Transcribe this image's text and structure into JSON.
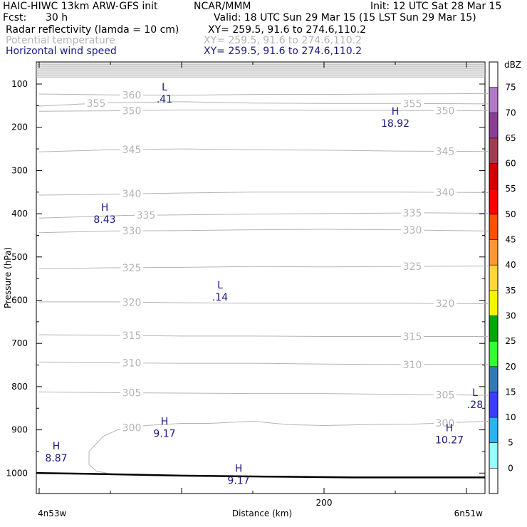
{
  "header": {
    "model": "HAIC-HIWC 13km ARW-GFS init",
    "org": "NCAR/MMM",
    "init": "Init: 12 UTC Sat 28 Mar 15",
    "fcst_label": "Fcst:",
    "fcst_value": "30 h",
    "valid": "Valid: 18 UTC Sun 29 Mar 15 (15 LST Sun 29 Mar 15)",
    "fields": [
      {
        "name": "Radar reflectivity (lamda = 10 cm)",
        "xy": "XY= 259.5, 91.6 to 274.6,110.2",
        "color": "#000000"
      },
      {
        "name": "Potential temperature",
        "xy": "XY= 259.5, 91.6 to 274.6,110.2",
        "color": "#b4b4b4"
      },
      {
        "name": "Horizontal wind speed",
        "xy": "XY= 259.5, 91.6 to 274.6,110.2",
        "color": "#1a1a80"
      }
    ]
  },
  "chart_data": {
    "type": "contour",
    "ylabel": "Pressure (hPa)",
    "xlabel": "Distance (km)",
    "y_ticks": [
      100,
      200,
      300,
      400,
      500,
      600,
      700,
      800,
      900,
      1000
    ],
    "ylim": [
      1050,
      50
    ],
    "x_ticks": [
      200
    ],
    "xlim": [
      0,
      315
    ],
    "x_endpoints": {
      "left": "4n53w",
      "right": "6n51w"
    },
    "theta_contours": [
      {
        "value": 360,
        "pts": [
          [
            0,
            123
          ],
          [
            50,
            125
          ],
          [
            100,
            126
          ],
          [
            150,
            124
          ],
          [
            200,
            124
          ],
          [
            250,
            123
          ],
          [
            315,
            122
          ]
        ],
        "labels": [
          [
            65,
            "360"
          ]
        ]
      },
      {
        "value": 355,
        "pts": [
          [
            0,
            151
          ],
          [
            50,
            143
          ],
          [
            100,
            141
          ],
          [
            150,
            144
          ],
          [
            200,
            145
          ],
          [
            250,
            145
          ],
          [
            315,
            146
          ]
        ],
        "labels": [
          [
            40,
            "355"
          ],
          [
            262,
            "355"
          ]
        ]
      },
      {
        "value": 350,
        "pts": [
          [
            0,
            163
          ],
          [
            50,
            162
          ],
          [
            100,
            160
          ],
          [
            150,
            160
          ],
          [
            200,
            161
          ],
          [
            250,
            161
          ],
          [
            315,
            162
          ]
        ],
        "labels": [
          [
            65,
            "350"
          ],
          [
            285,
            "350"
          ]
        ]
      },
      {
        "value": 345,
        "pts": [
          [
            0,
            257
          ],
          [
            50,
            252
          ],
          [
            100,
            250
          ],
          [
            150,
            252
          ],
          [
            200,
            253
          ],
          [
            250,
            255
          ],
          [
            315,
            256
          ]
        ],
        "labels": [
          [
            65,
            "345"
          ],
          [
            285,
            "345"
          ]
        ]
      },
      {
        "value": 340,
        "pts": [
          [
            0,
            357
          ],
          [
            50,
            355
          ],
          [
            100,
            352
          ],
          [
            150,
            350
          ],
          [
            200,
            350
          ],
          [
            250,
            350
          ],
          [
            315,
            351
          ]
        ],
        "labels": [
          [
            65,
            "340"
          ],
          [
            285,
            "340"
          ]
        ]
      },
      {
        "value": 335,
        "pts": [
          [
            0,
            410
          ],
          [
            60,
            404
          ],
          [
            120,
            402
          ],
          [
            180,
            400
          ],
          [
            230,
            399
          ],
          [
            270,
            398
          ],
          [
            315,
            399
          ]
        ],
        "labels": [
          [
            75,
            "335"
          ],
          [
            262,
            "335"
          ]
        ]
      },
      {
        "value": 330,
        "pts": [
          [
            0,
            444
          ],
          [
            50,
            440
          ],
          [
            100,
            439
          ],
          [
            150,
            437
          ],
          [
            200,
            436
          ],
          [
            250,
            437
          ],
          [
            315,
            440
          ]
        ],
        "labels": [
          [
            65,
            "330"
          ],
          [
            262,
            "330"
          ]
        ]
      },
      {
        "value": 325,
        "pts": [
          [
            0,
            527
          ],
          [
            50,
            525
          ],
          [
            100,
            524
          ],
          [
            150,
            522
          ],
          [
            200,
            523
          ],
          [
            250,
            522
          ],
          [
            315,
            521
          ]
        ],
        "labels": [
          [
            65,
            "325"
          ],
          [
            262,
            "325"
          ]
        ]
      },
      {
        "value": 320,
        "pts": [
          [
            0,
            604
          ],
          [
            50,
            604
          ],
          [
            100,
            606
          ],
          [
            150,
            607
          ],
          [
            200,
            607
          ],
          [
            250,
            607
          ],
          [
            315,
            608
          ]
        ],
        "labels": [
          [
            65,
            "320"
          ],
          [
            285,
            "320"
          ]
        ]
      },
      {
        "value": 315,
        "pts": [
          [
            0,
            680
          ],
          [
            50,
            681
          ],
          [
            100,
            683
          ],
          [
            150,
            683
          ],
          [
            200,
            684
          ],
          [
            250,
            684
          ],
          [
            315,
            684
          ]
        ],
        "labels": [
          [
            65,
            "315"
          ],
          [
            262,
            "315"
          ]
        ]
      },
      {
        "value": 310,
        "pts": [
          [
            0,
            743
          ],
          [
            50,
            745
          ],
          [
            100,
            746
          ],
          [
            150,
            746
          ],
          [
            200,
            748
          ],
          [
            250,
            749
          ],
          [
            315,
            749
          ]
        ],
        "labels": [
          [
            65,
            "310"
          ],
          [
            262,
            "310"
          ]
        ]
      },
      {
        "value": 305,
        "pts": [
          [
            0,
            812
          ],
          [
            50,
            814
          ],
          [
            100,
            815
          ],
          [
            150,
            816
          ],
          [
            200,
            816
          ],
          [
            250,
            818
          ],
          [
            315,
            820
          ]
        ],
        "labels": [
          [
            65,
            "305"
          ],
          [
            285,
            "305"
          ]
        ]
      },
      {
        "value": 300,
        "pts": [
          [
            50,
            1002
          ],
          [
            40,
            995
          ],
          [
            35,
            980
          ],
          [
            35,
            950
          ],
          [
            45,
            915
          ],
          [
            55,
            900
          ],
          [
            75,
            890
          ],
          [
            100,
            885
          ],
          [
            120,
            885
          ],
          [
            150,
            880
          ],
          [
            175,
            888
          ],
          [
            200,
            890
          ],
          [
            230,
            888
          ],
          [
            260,
            887
          ],
          [
            315,
            880
          ]
        ],
        "labels": [
          [
            65,
            "300"
          ],
          [
            285,
            "300"
          ]
        ]
      }
    ],
    "terrain": [
      [
        0,
        1000
      ],
      [
        40,
        1002
      ],
      [
        100,
        1006
      ],
      [
        160,
        1008
      ],
      [
        220,
        1010
      ],
      [
        315,
        1010
      ]
    ],
    "wind_extrema": [
      {
        "kind": "L",
        "value": ".41",
        "x": 88,
        "p": 130
      },
      {
        "kind": "H",
        "value": "18.92",
        "x": 250,
        "p": 186
      },
      {
        "kind": "H",
        "value": "8.43",
        "x": 46,
        "p": 408
      },
      {
        "kind": "L",
        "value": ".14",
        "x": 127,
        "p": 588
      },
      {
        "kind": "H",
        "value": "9.17",
        "x": 88,
        "p": 903
      },
      {
        "kind": "H",
        "value": "8.87",
        "x": 12,
        "p": 960
      },
      {
        "kind": "H",
        "value": "9.17",
        "x": 140,
        "p": 1012
      },
      {
        "kind": "H",
        "value": "10.27",
        "x": 288,
        "p": 918
      },
      {
        "kind": "L",
        "value": ".28",
        "x": 306,
        "p": 836
      }
    ],
    "colorbar": {
      "unit": "dBZ",
      "levels": [
        0,
        5,
        10,
        15,
        20,
        25,
        30,
        35,
        40,
        45,
        50,
        55,
        60,
        65,
        70,
        75
      ],
      "colors": [
        "#ffffff",
        "#96ffff",
        "#28b4f0",
        "#3c3cff",
        "#3278b4",
        "#32ff32",
        "#00aa00",
        "#f5f500",
        "#ffd737",
        "#ff9632",
        "#ff5000",
        "#ff0000",
        "#d20000",
        "#a03c50",
        "#8c3c96",
        "#b478c8",
        "#ffffff"
      ]
    }
  }
}
